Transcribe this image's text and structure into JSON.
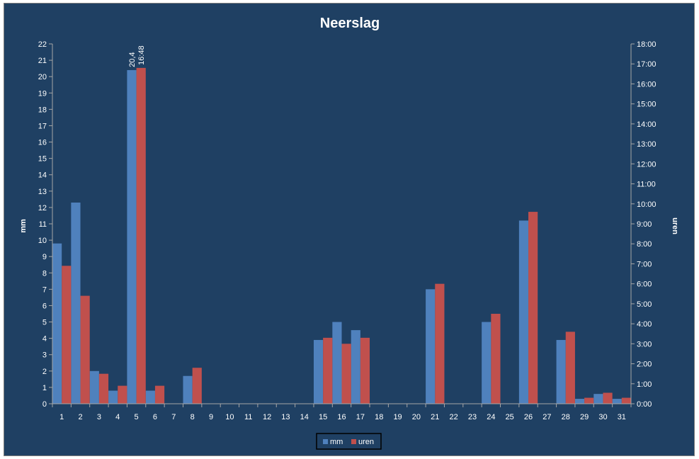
{
  "chart_data": {
    "type": "bar",
    "title": "Neerslag",
    "ylabel": "mm",
    "y2label": "uren",
    "ylim": [
      0,
      22
    ],
    "y2lim": [
      0,
      18
    ],
    "yticks": [
      "0",
      "1",
      "2",
      "3",
      "4",
      "5",
      "6",
      "7",
      "8",
      "9",
      "10",
      "11",
      "12",
      "13",
      "14",
      "15",
      "16",
      "17",
      "18",
      "19",
      "20",
      "21",
      "22"
    ],
    "y2ticks": [
      "0:00",
      "1:00",
      "2:00",
      "3:00",
      "4:00",
      "5:00",
      "6:00",
      "7:00",
      "8:00",
      "9:00",
      "10:00",
      "11:00",
      "12:00",
      "13:00",
      "14:00",
      "15:00",
      "16:00",
      "17:00",
      "18:00"
    ],
    "categories": [
      "1",
      "2",
      "3",
      "4",
      "5",
      "6",
      "7",
      "8",
      "9",
      "10",
      "11",
      "12",
      "13",
      "14",
      "15",
      "16",
      "17",
      "18",
      "19",
      "20",
      "21",
      "22",
      "23",
      "24",
      "25",
      "26",
      "27",
      "28",
      "29",
      "30",
      "31"
    ],
    "series": [
      {
        "name": "mm",
        "axis": "left",
        "color": "#4f81bd",
        "values": [
          9.8,
          12.3,
          2.0,
          0.8,
          20.4,
          0.8,
          0,
          1.7,
          0,
          0,
          0,
          0,
          0,
          0,
          3.9,
          5.0,
          4.5,
          0,
          0,
          0,
          7.0,
          0,
          0,
          5.0,
          0,
          11.2,
          0,
          3.9,
          0.3,
          0.6,
          0.3
        ]
      },
      {
        "name": "uren",
        "axis": "right",
        "unit": "hours",
        "color": "#c0504d",
        "values": [
          6.9,
          5.4,
          1.5,
          0.9,
          16.8,
          0.9,
          0,
          1.8,
          0,
          0,
          0,
          0,
          0,
          0,
          3.3,
          3.0,
          3.3,
          0,
          0,
          0,
          6.0,
          0,
          0,
          4.5,
          0,
          9.6,
          0,
          3.6,
          0.3,
          0.55,
          0.3
        ]
      }
    ],
    "annotations": [
      {
        "category": "5",
        "series": "mm",
        "text": "20,4"
      },
      {
        "category": "5",
        "series": "uren",
        "text": "16:48"
      }
    ],
    "legend": {
      "position": "bottom",
      "items": [
        "mm",
        "uren"
      ]
    },
    "grid": false,
    "colors": {
      "background": "#1f4063",
      "axis": "#a6a6a6",
      "text": "#ffffff",
      "legend_border": "#000000"
    }
  }
}
